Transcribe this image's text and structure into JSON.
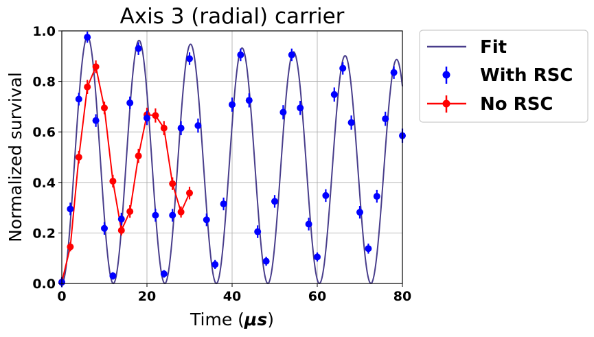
{
  "chart_data": {
    "type": "scatter",
    "title": "Axis 3 (radial) carrier",
    "xlabel_prefix": "Time (",
    "xlabel_unit": "μs",
    "xlabel_suffix": ")",
    "ylabel": "Normalized survival",
    "xlim": [
      0,
      80
    ],
    "ylim": [
      0,
      1.0
    ],
    "xticks": [
      0,
      20,
      40,
      60,
      80
    ],
    "xtick_labels": [
      "0",
      "20",
      "40",
      "60",
      "80"
    ],
    "yticks": [
      0,
      0.2,
      0.4,
      0.6,
      0.8,
      1.0
    ],
    "ytick_labels": [
      "0.0",
      "0.2",
      "0.4",
      "0.6",
      "0.8",
      "1.0"
    ],
    "grid": true,
    "legend_position": "outside-right",
    "fit": {
      "name": "Fit",
      "color": "#483d8b",
      "model": "0.5*A*(1 - cos(2*pi*x/T))",
      "amplitude_start": 0.985,
      "amplitude_end": 0.885,
      "period_us": 12.1
    },
    "series": [
      {
        "name": "With RSC",
        "color": "#0000ff",
        "style": "errorbar-markers",
        "x": [
          0,
          2,
          4,
          6,
          8,
          10,
          12,
          14,
          16,
          18,
          20,
          22,
          24,
          26,
          28,
          30,
          32,
          34,
          36,
          38,
          40,
          42,
          44,
          46,
          48,
          50,
          52,
          54,
          56,
          58,
          60,
          62,
          64,
          66,
          68,
          70,
          72,
          74,
          76,
          78,
          80
        ],
        "y": [
          0.005,
          0.295,
          0.73,
          0.975,
          0.645,
          0.218,
          0.03,
          0.255,
          0.715,
          0.93,
          0.655,
          0.27,
          0.038,
          0.27,
          0.615,
          0.89,
          0.625,
          0.252,
          0.075,
          0.315,
          0.708,
          0.905,
          0.725,
          0.205,
          0.088,
          0.325,
          0.678,
          0.905,
          0.695,
          0.235,
          0.105,
          0.348,
          0.748,
          0.852,
          0.637,
          0.282,
          0.138,
          0.345,
          0.652,
          0.835,
          0.585
        ],
        "yerr": [
          0.02,
          0.025,
          0.025,
          0.022,
          0.025,
          0.025,
          0.015,
          0.025,
          0.025,
          0.025,
          0.028,
          0.025,
          0.015,
          0.025,
          0.028,
          0.025,
          0.028,
          0.025,
          0.018,
          0.025,
          0.028,
          0.025,
          0.028,
          0.025,
          0.018,
          0.025,
          0.028,
          0.025,
          0.028,
          0.025,
          0.018,
          0.025,
          0.028,
          0.025,
          0.028,
          0.025,
          0.02,
          0.025,
          0.028,
          0.025,
          0.028
        ]
      },
      {
        "name": "No RSC",
        "color": "#ff0000",
        "style": "errorbar-line",
        "x": [
          0,
          2,
          4,
          6,
          8,
          10,
          12,
          14,
          16,
          18,
          20,
          22,
          24,
          26,
          28,
          30
        ],
        "y": [
          0.005,
          0.145,
          0.5,
          0.778,
          0.858,
          0.695,
          0.405,
          0.21,
          0.285,
          0.505,
          0.668,
          0.665,
          0.615,
          0.395,
          0.283,
          0.358
        ],
        "yerr": [
          0.015,
          0.018,
          0.025,
          0.028,
          0.025,
          0.025,
          0.025,
          0.02,
          0.025,
          0.028,
          0.028,
          0.028,
          0.028,
          0.025,
          0.022,
          0.025
        ]
      }
    ]
  }
}
